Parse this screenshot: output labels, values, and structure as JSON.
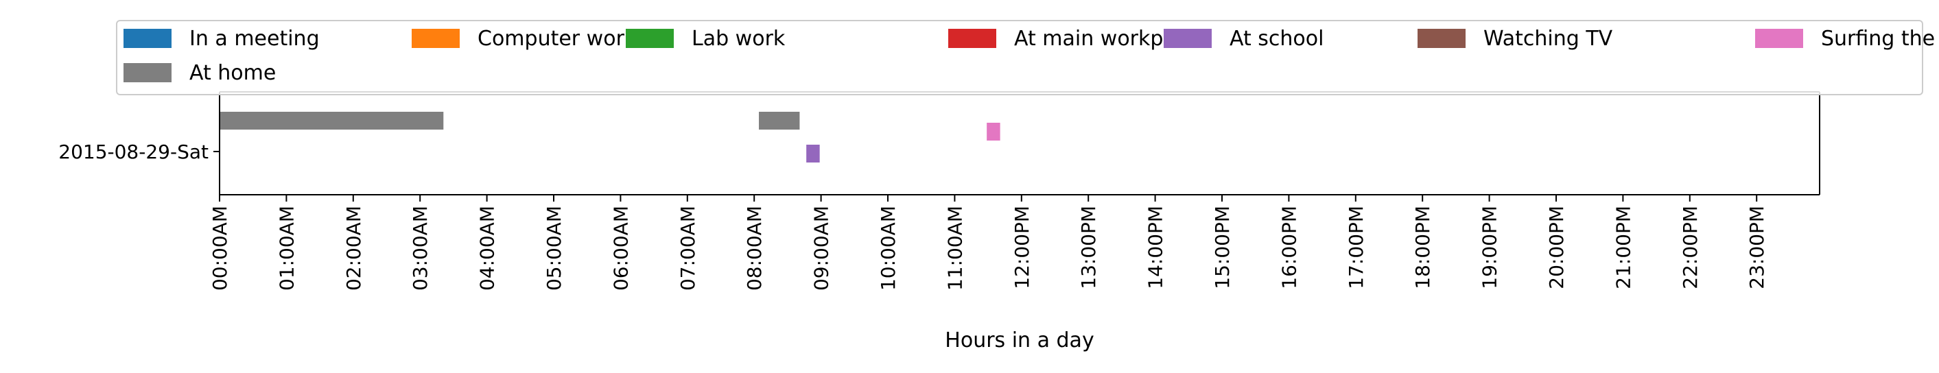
{
  "chart_data": {
    "type": "bar",
    "orientation": "horizontal-timeline",
    "title": "",
    "xlabel": "Hours in a day",
    "ylabel": "",
    "xlim": [
      0,
      24
    ],
    "x_ticks": [
      "00:00AM",
      "01:00AM",
      "02:00AM",
      "03:00AM",
      "04:00AM",
      "05:00AM",
      "06:00AM",
      "07:00AM",
      "08:00AM",
      "09:00AM",
      "10:00AM",
      "11:00AM",
      "12:00PM",
      "13:00PM",
      "14:00PM",
      "15:00PM",
      "16:00PM",
      "17:00PM",
      "18:00PM",
      "19:00PM",
      "20:00PM",
      "21:00PM",
      "22:00PM",
      "23:00PM"
    ],
    "categories": [
      "2015-08-29-Sat"
    ],
    "grid": false,
    "legend_position": "top",
    "series": [
      {
        "name": "In a meeting",
        "color": "#1f77b4",
        "intervals": []
      },
      {
        "name": "Computer work",
        "color": "#ff7f0e",
        "intervals": []
      },
      {
        "name": "Lab work",
        "color": "#2ca02c",
        "intervals": []
      },
      {
        "name": "At main workplace",
        "color": "#d62728",
        "intervals": []
      },
      {
        "name": "At school",
        "color": "#9467bd",
        "intervals": [
          {
            "category": "2015-08-29-Sat",
            "start": 8.78,
            "end": 8.98
          }
        ]
      },
      {
        "name": "Watching TV",
        "color": "#8c564b",
        "intervals": []
      },
      {
        "name": "Surfing the internet",
        "color": "#e377c2",
        "intervals": [
          {
            "category": "2015-08-29-Sat",
            "start": 11.48,
            "end": 11.68
          }
        ]
      },
      {
        "name": "At home",
        "color": "#7f7f7f",
        "intervals": [
          {
            "category": "2015-08-29-Sat",
            "start": 0.0,
            "end": 3.35
          },
          {
            "category": "2015-08-29-Sat",
            "start": 8.07,
            "end": 8.68
          }
        ]
      }
    ]
  }
}
